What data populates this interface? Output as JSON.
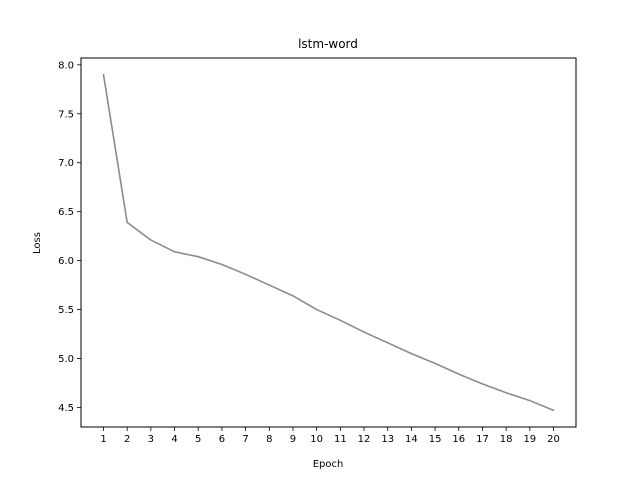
{
  "chart_data": {
    "type": "line",
    "title": "lstm-word",
    "xlabel": "Epoch",
    "ylabel": "Loss",
    "x": [
      1,
      2,
      3,
      4,
      5,
      6,
      7,
      8,
      9,
      10,
      11,
      12,
      13,
      14,
      15,
      16,
      17,
      18,
      19,
      20
    ],
    "series": [
      {
        "color": "#8c8c8c",
        "values": [
          7.9,
          6.39,
          6.21,
          6.09,
          6.04,
          5.96,
          5.86,
          5.75,
          5.64,
          5.5,
          5.39,
          5.27,
          5.16,
          5.05,
          4.95,
          4.84,
          4.74,
          4.65,
          4.57,
          4.47
        ]
      }
    ],
    "xlim": [
      0.05,
      20.95
    ],
    "ylim": [
      4.3,
      8.07
    ],
    "xticks": [
      1,
      2,
      3,
      4,
      5,
      6,
      7,
      8,
      9,
      10,
      11,
      12,
      13,
      14,
      15,
      16,
      17,
      18,
      19,
      20
    ],
    "yticks": [
      "4.5",
      "5.0",
      "5.5",
      "6.0",
      "6.5",
      "7.0",
      "7.5",
      "8.0"
    ],
    "grid": false,
    "legend": "none"
  }
}
